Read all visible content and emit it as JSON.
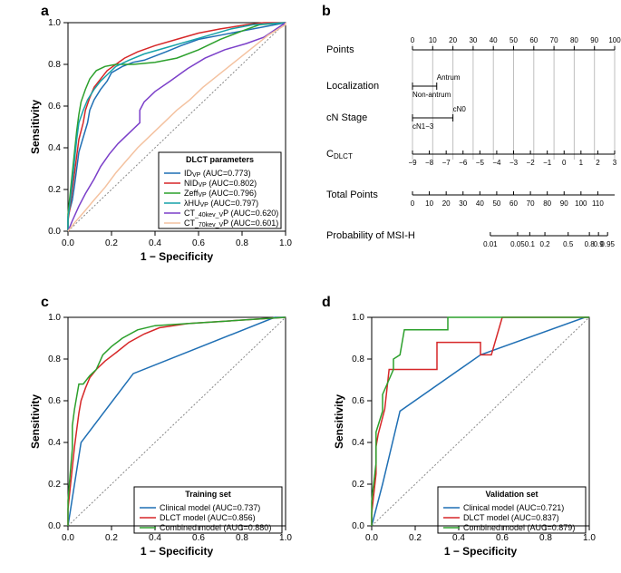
{
  "panel_a": {
    "label": "a",
    "ylabel": "Sensitivity",
    "xlabel": "1 − Specificity",
    "xlim": [
      0,
      1
    ],
    "ylim": [
      0,
      1
    ],
    "ticks": [
      0.0,
      0.2,
      0.4,
      0.6,
      0.8,
      1.0
    ],
    "legend_title": "DLCT parameters",
    "curves": [
      {
        "name": "ID_VP",
        "color": "#1f6fb4",
        "legend": "ID_VP (AUC=0.773)",
        "sub_start": 2,
        "points": [
          [
            0,
            0
          ],
          [
            0,
            0.07
          ],
          [
            0.02,
            0.15
          ],
          [
            0.03,
            0.22
          ],
          [
            0.04,
            0.3
          ],
          [
            0.05,
            0.38
          ],
          [
            0.07,
            0.45
          ],
          [
            0.09,
            0.52
          ],
          [
            0.1,
            0.58
          ],
          [
            0.12,
            0.63
          ],
          [
            0.15,
            0.68
          ],
          [
            0.18,
            0.72
          ],
          [
            0.2,
            0.76
          ],
          [
            0.25,
            0.79
          ],
          [
            0.3,
            0.81
          ],
          [
            0.35,
            0.82
          ],
          [
            0.4,
            0.84
          ],
          [
            0.45,
            0.86
          ],
          [
            0.52,
            0.89
          ],
          [
            0.6,
            0.92
          ],
          [
            0.7,
            0.94
          ],
          [
            0.8,
            0.96
          ],
          [
            0.9,
            0.98
          ],
          [
            1,
            1
          ]
        ]
      },
      {
        "name": "NID_VP",
        "color": "#d62728",
        "legend": "NID_VP (AUC=0.802)",
        "sub_start": 3,
        "points": [
          [
            0,
            0
          ],
          [
            0,
            0.05
          ],
          [
            0.01,
            0.12
          ],
          [
            0.02,
            0.2
          ],
          [
            0.03,
            0.28
          ],
          [
            0.04,
            0.36
          ],
          [
            0.05,
            0.44
          ],
          [
            0.07,
            0.52
          ],
          [
            0.08,
            0.58
          ],
          [
            0.1,
            0.64
          ],
          [
            0.12,
            0.69
          ],
          [
            0.15,
            0.73
          ],
          [
            0.18,
            0.77
          ],
          [
            0.22,
            0.8
          ],
          [
            0.26,
            0.83
          ],
          [
            0.32,
            0.86
          ],
          [
            0.4,
            0.89
          ],
          [
            0.5,
            0.92
          ],
          [
            0.6,
            0.95
          ],
          [
            0.7,
            0.97
          ],
          [
            0.82,
            0.99
          ],
          [
            0.9,
            1
          ],
          [
            1,
            1
          ]
        ]
      },
      {
        "name": "Zeff_VP",
        "color": "#2ca02c",
        "legend": "Zeff_VP (AUC=0.796)",
        "sub_start": 4,
        "points": [
          [
            0,
            0
          ],
          [
            0,
            0.08
          ],
          [
            0.01,
            0.18
          ],
          [
            0.02,
            0.28
          ],
          [
            0.03,
            0.38
          ],
          [
            0.04,
            0.48
          ],
          [
            0.05,
            0.56
          ],
          [
            0.06,
            0.62
          ],
          [
            0.08,
            0.68
          ],
          [
            0.1,
            0.73
          ],
          [
            0.13,
            0.77
          ],
          [
            0.17,
            0.79
          ],
          [
            0.22,
            0.8
          ],
          [
            0.3,
            0.8
          ],
          [
            0.4,
            0.81
          ],
          [
            0.5,
            0.83
          ],
          [
            0.6,
            0.87
          ],
          [
            0.7,
            0.92
          ],
          [
            0.8,
            0.96
          ],
          [
            0.88,
            0.99
          ],
          [
            1,
            1
          ]
        ]
      },
      {
        "name": "lambdaHU_VP",
        "color": "#17a2a8",
        "legend": "λHU_VP (AUC=0.797)",
        "sub_start": 3,
        "points": [
          [
            0,
            0
          ],
          [
            0,
            0.06
          ],
          [
            0.01,
            0.14
          ],
          [
            0.02,
            0.24
          ],
          [
            0.03,
            0.34
          ],
          [
            0.04,
            0.44
          ],
          [
            0.05,
            0.52
          ],
          [
            0.07,
            0.58
          ],
          [
            0.09,
            0.63
          ],
          [
            0.12,
            0.68
          ],
          [
            0.15,
            0.72
          ],
          [
            0.18,
            0.75
          ],
          [
            0.22,
            0.79
          ],
          [
            0.28,
            0.82
          ],
          [
            0.35,
            0.85
          ],
          [
            0.45,
            0.88
          ],
          [
            0.55,
            0.91
          ],
          [
            0.65,
            0.94
          ],
          [
            0.75,
            0.97
          ],
          [
            0.85,
            0.99
          ],
          [
            1,
            1
          ]
        ]
      },
      {
        "name": "CT40kev_VP",
        "color": "#7b3fc9",
        "legend": "CT_40kev_VP (AUC=0.620)",
        "legend_sub": {
          "start": 2,
          "end": 10
        },
        "points": [
          [
            0,
            0
          ],
          [
            0.02,
            0.05
          ],
          [
            0.05,
            0.12
          ],
          [
            0.08,
            0.18
          ],
          [
            0.12,
            0.25
          ],
          [
            0.15,
            0.31
          ],
          [
            0.19,
            0.37
          ],
          [
            0.23,
            0.42
          ],
          [
            0.28,
            0.47
          ],
          [
            0.33,
            0.52
          ],
          [
            0.33,
            0.58
          ],
          [
            0.35,
            0.62
          ],
          [
            0.4,
            0.67
          ],
          [
            0.47,
            0.72
          ],
          [
            0.55,
            0.78
          ],
          [
            0.63,
            0.83
          ],
          [
            0.72,
            0.87
          ],
          [
            0.82,
            0.9
          ],
          [
            0.9,
            0.93
          ],
          [
            1,
            1
          ]
        ]
      },
      {
        "name": "CT70kev_VP",
        "color": "#f4c2a0",
        "legend": "CT_70kev_VP (AUC=0.601)",
        "legend_sub": {
          "start": 2,
          "end": 10
        },
        "points": [
          [
            0,
            0
          ],
          [
            0.03,
            0.04
          ],
          [
            0.08,
            0.1
          ],
          [
            0.12,
            0.15
          ],
          [
            0.17,
            0.21
          ],
          [
            0.22,
            0.28
          ],
          [
            0.27,
            0.34
          ],
          [
            0.32,
            0.4
          ],
          [
            0.38,
            0.46
          ],
          [
            0.44,
            0.52
          ],
          [
            0.5,
            0.58
          ],
          [
            0.56,
            0.63
          ],
          [
            0.62,
            0.69
          ],
          [
            0.68,
            0.74
          ],
          [
            0.74,
            0.79
          ],
          [
            0.8,
            0.84
          ],
          [
            0.86,
            0.89
          ],
          [
            0.92,
            0.94
          ],
          [
            1,
            0.99
          ],
          [
            1,
            1
          ]
        ]
      }
    ]
  },
  "panel_b": {
    "label": "b",
    "rows": [
      {
        "label": "Points",
        "type": "scale",
        "from": 0,
        "to": 100,
        "ticks": [
          0,
          10,
          20,
          30,
          40,
          50,
          60,
          70,
          80,
          90,
          100
        ],
        "x_start": 0,
        "x_end": 1
      },
      {
        "label": "Localization",
        "type": "pred",
        "levels": [
          {
            "label": "Antrum",
            "x": 0.12
          },
          {
            "label": "Non-antrum",
            "x": 0.0
          }
        ],
        "line_from": 0.0,
        "line_to": 0.12
      },
      {
        "label": "cN Stage",
        "type": "pred",
        "levels": [
          {
            "label": "cN0",
            "x": 0.2
          },
          {
            "label": "cN1−3",
            "x": 0.0
          }
        ],
        "line_from": 0.0,
        "line_to": 0.2
      },
      {
        "label": "C_DLCT",
        "type": "scale",
        "from": -9,
        "to": 3,
        "ticks": [
          -9,
          -8,
          -7,
          -6,
          -5,
          -4,
          -3,
          -2,
          -1,
          0,
          1,
          2,
          3
        ],
        "x_start": 0,
        "x_end": 1
      },
      {
        "label": "Total Points",
        "type": "scale",
        "from": 0,
        "to": 120,
        "ticks": [
          0,
          10,
          20,
          30,
          40,
          50,
          60,
          70,
          80,
          90,
          100,
          110
        ],
        "x_start": 0,
        "x_end": 1
      },
      {
        "label": "Probability of MSI-H",
        "type": "scale",
        "ticks_pos": [
          {
            "label": "0.01",
            "x": 0.385
          },
          {
            "label": "0.05",
            "x": 0.52
          },
          {
            "label": "0.1",
            "x": 0.58
          },
          {
            "label": "0.2",
            "x": 0.655
          },
          {
            "label": "0.5",
            "x": 0.77
          },
          {
            "label": "0.8",
            "x": 0.875
          },
          {
            "label": "0.9",
            "x": 0.92
          },
          {
            "label": "0.95",
            "x": 0.965
          }
        ],
        "x_start": 0.385,
        "x_end": 0.965
      }
    ]
  },
  "panel_c": {
    "label": "c",
    "ylabel": "Sensitivity",
    "xlabel": "1 − Specificity",
    "xlim": [
      0,
      1
    ],
    "ylim": [
      0,
      1
    ],
    "ticks": [
      0.0,
      0.2,
      0.4,
      0.6,
      0.8,
      1.0
    ],
    "legend_title": "Training set",
    "curves": [
      {
        "name": "Clinical",
        "color": "#1f6fb4",
        "legend": "Clinical model (AUC=0.737)",
        "points": [
          [
            0,
            0
          ],
          [
            0.06,
            0.4
          ],
          [
            0.3,
            0.73
          ],
          [
            0.95,
            1
          ],
          [
            1,
            1
          ]
        ]
      },
      {
        "name": "DLCT",
        "color": "#d62728",
        "legend": "DLCT model (AUC=0.856)",
        "points": [
          [
            0,
            0
          ],
          [
            0,
            0.08
          ],
          [
            0.01,
            0.18
          ],
          [
            0.02,
            0.28
          ],
          [
            0.03,
            0.38
          ],
          [
            0.04,
            0.46
          ],
          [
            0.05,
            0.54
          ],
          [
            0.06,
            0.6
          ],
          [
            0.08,
            0.66
          ],
          [
            0.1,
            0.71
          ],
          [
            0.13,
            0.75
          ],
          [
            0.17,
            0.79
          ],
          [
            0.22,
            0.83
          ],
          [
            0.28,
            0.88
          ],
          [
            0.35,
            0.92
          ],
          [
            0.42,
            0.95
          ],
          [
            0.55,
            0.97
          ],
          [
            0.7,
            0.98
          ],
          [
            0.85,
            0.99
          ],
          [
            1,
            1
          ]
        ]
      },
      {
        "name": "Combined",
        "color": "#2ca02c",
        "legend": "Combined model (AUC=0.880)",
        "points": [
          [
            0,
            0
          ],
          [
            0,
            0.12
          ],
          [
            0.01,
            0.25
          ],
          [
            0.02,
            0.37
          ],
          [
            0.02,
            0.48
          ],
          [
            0.03,
            0.56
          ],
          [
            0.04,
            0.62
          ],
          [
            0.05,
            0.68
          ],
          [
            0.07,
            0.68
          ],
          [
            0.1,
            0.72
          ],
          [
            0.13,
            0.75
          ],
          [
            0.16,
            0.82
          ],
          [
            0.2,
            0.86
          ],
          [
            0.25,
            0.9
          ],
          [
            0.32,
            0.94
          ],
          [
            0.4,
            0.96
          ],
          [
            0.55,
            0.97
          ],
          [
            0.7,
            0.98
          ],
          [
            0.85,
            0.99
          ],
          [
            1,
            1
          ]
        ]
      }
    ]
  },
  "panel_d": {
    "label": "d",
    "ylabel": "Sensitivity",
    "xlabel": "1 − Specificity",
    "xlim": [
      0,
      1
    ],
    "ylim": [
      0,
      1
    ],
    "ticks": [
      0.0,
      0.2,
      0.4,
      0.6,
      0.8,
      1.0
    ],
    "legend_title": "Validation set",
    "curves": [
      {
        "name": "Clinical",
        "color": "#1f6fb4",
        "legend": "Clinical model (AUC=0.721)",
        "points": [
          [
            0,
            0
          ],
          [
            0.05,
            0.2
          ],
          [
            0.13,
            0.55
          ],
          [
            0.5,
            0.82
          ],
          [
            0.98,
            1
          ],
          [
            1,
            1
          ]
        ]
      },
      {
        "name": "DLCT",
        "color": "#d62728",
        "legend": "DLCT model (AUC=0.837)",
        "points": [
          [
            0,
            0
          ],
          [
            0,
            0.06
          ],
          [
            0.02,
            0.25
          ],
          [
            0.02,
            0.38
          ],
          [
            0.03,
            0.44
          ],
          [
            0.06,
            0.56
          ],
          [
            0.08,
            0.75
          ],
          [
            0.1,
            0.75
          ],
          [
            0.3,
            0.75
          ],
          [
            0.3,
            0.88
          ],
          [
            0.5,
            0.88
          ],
          [
            0.5,
            0.82
          ],
          [
            0.55,
            0.82
          ],
          [
            0.6,
            1
          ],
          [
            1,
            1
          ]
        ]
      },
      {
        "name": "Combined",
        "color": "#2ca02c",
        "legend": "Combined model (AUC=0.879)",
        "points": [
          [
            0,
            0
          ],
          [
            0,
            0.12
          ],
          [
            0.02,
            0.3
          ],
          [
            0.02,
            0.45
          ],
          [
            0.05,
            0.55
          ],
          [
            0.05,
            0.63
          ],
          [
            0.1,
            0.75
          ],
          [
            0.1,
            0.8
          ],
          [
            0.13,
            0.82
          ],
          [
            0.15,
            0.94
          ],
          [
            0.35,
            0.94
          ],
          [
            0.35,
            1
          ],
          [
            1,
            1
          ]
        ]
      }
    ]
  }
}
